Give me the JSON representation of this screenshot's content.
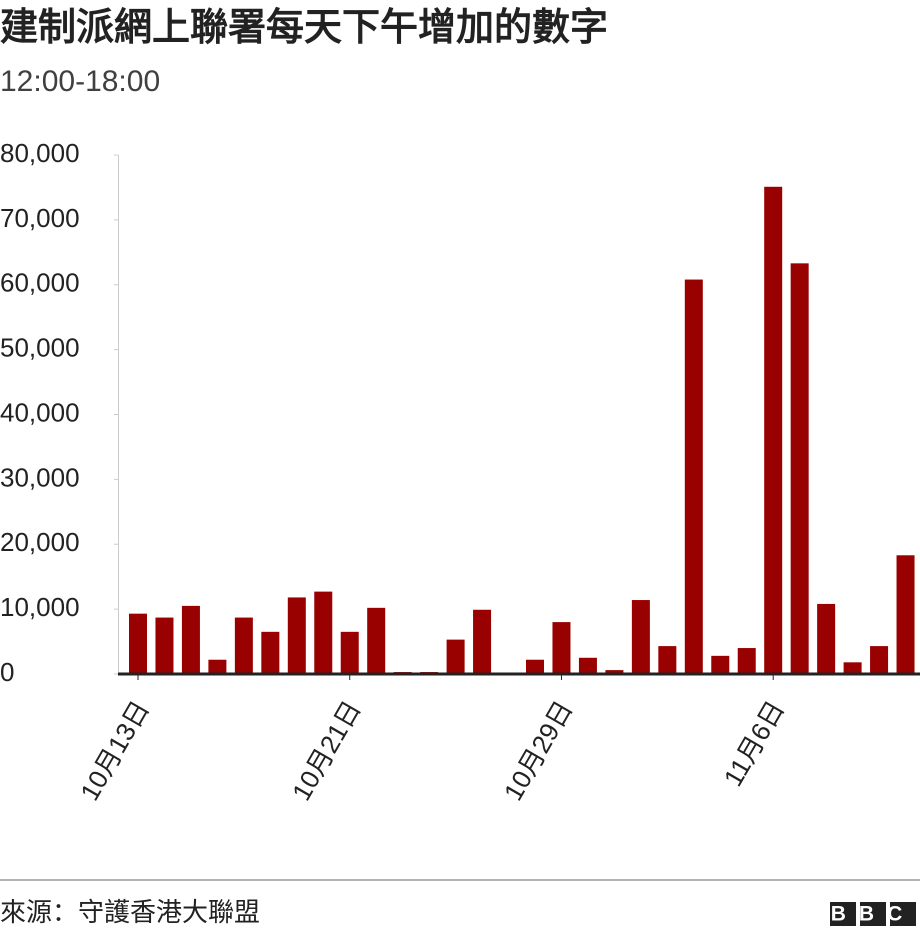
{
  "chart_data": {
    "type": "bar",
    "title": "建制派網上聯署每天下午增加的數字",
    "subtitle": "12:00-18:00",
    "categories": [
      "10月13日",
      null,
      null,
      null,
      null,
      null,
      null,
      null,
      "10月21日",
      null,
      null,
      null,
      null,
      null,
      null,
      null,
      "10月29日",
      null,
      null,
      null,
      null,
      null,
      null,
      null,
      "11月6日",
      null,
      null,
      null,
      null,
      null
    ],
    "values": [
      9300,
      8700,
      10500,
      2200,
      8700,
      6500,
      11800,
      12700,
      6500,
      10200,
      300,
      300,
      5300,
      9900,
      null,
      2200,
      8000,
      2500,
      600,
      11400,
      4300,
      60800,
      2800,
      4000,
      75100,
      63300,
      10800,
      1800,
      4300,
      18300
    ],
    "color": "#990000",
    "ylim": [
      0,
      80000
    ],
    "yticks": [
      0,
      {
        "value": 10000,
        "label": "10,000"
      },
      {
        "value": 20000,
        "label": "20,000"
      },
      {
        "value": 30000,
        "label": "30,000"
      },
      {
        "value": 40000,
        "label": "40,000"
      },
      {
        "value": 50000,
        "label": "50,000"
      },
      {
        "value": 60000,
        "label": "60,000"
      },
      {
        "value": 70000,
        "label": "70,000"
      },
      {
        "value": 80000,
        "label": "80,000"
      }
    ],
    "grid": false
  },
  "source": "來源：守護香港大聯盟",
  "logo": "BBC"
}
